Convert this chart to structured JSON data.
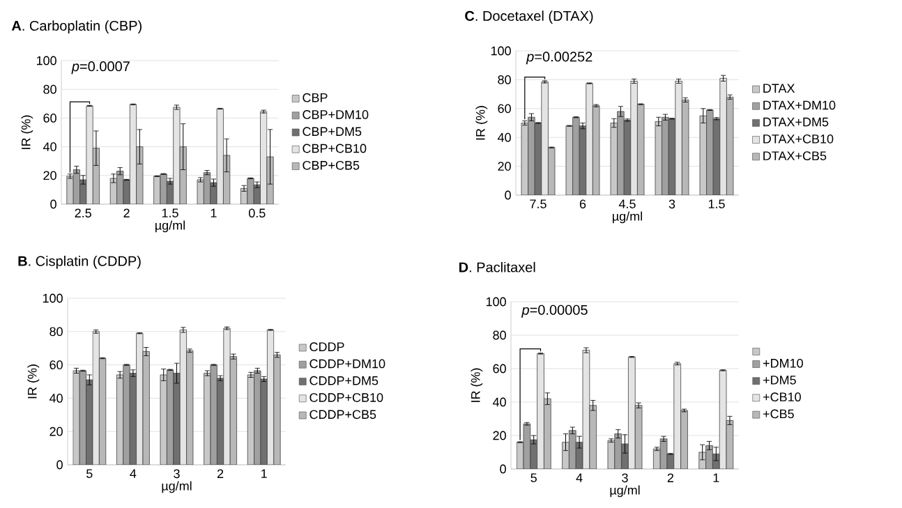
{
  "chart_data": [
    {
      "type": "bar",
      "title": "**A**. Carboplatin (CBP)",
      "xlabel": "µg/ml",
      "ylabel": "IR (%)",
      "categories": [
        "2.5",
        "2",
        "1.5",
        "1",
        "0.5"
      ],
      "ylim": [
        0,
        100
      ],
      "yticks": [
        0,
        20,
        40,
        60,
        80,
        100
      ],
      "grid": "y",
      "legend": "right",
      "annotations": [
        {
          "text": "*p*=0.0007",
          "x": "2.5",
          "y": 68.5
        }
      ],
      "series": [
        {
          "name": "CBP",
          "color": "#c8c8c8",
          "values": [
            19.5,
            18,
            19.5,
            17,
            11
          ],
          "errors": [
            1.5,
            3,
            0.3,
            1.5,
            2
          ]
        },
        {
          "name": "CBP+DM10",
          "color": "#a0a0a0",
          "values": [
            24,
            23,
            21,
            22,
            18
          ],
          "errors": [
            2.5,
            2.5,
            0.3,
            1.5,
            0.3
          ]
        },
        {
          "name": "CBP+DM5",
          "color": "#707070",
          "values": [
            17,
            17,
            16,
            15,
            13.5
          ],
          "errors": [
            3,
            0.3,
            2,
            2.5,
            2
          ]
        },
        {
          "name": "CBP+CB10",
          "color": "#e4e4e4",
          "values": [
            68.5,
            69.5,
            67.5,
            66.5,
            64.5
          ],
          "errors": [
            0.3,
            0.3,
            1.5,
            0.3,
            1
          ]
        },
        {
          "name": "CBP+CB5",
          "color": "#b8b8b8",
          "values": [
            39,
            40,
            40,
            34,
            33
          ],
          "errors": [
            12,
            12,
            16,
            11.5,
            19
          ]
        }
      ]
    },
    {
      "type": "bar",
      "title": "**C**. Docetaxel (DTAX)",
      "xlabel": "µg/ml",
      "ylabel": "IR (%)",
      "categories": [
        "7.5",
        "6",
        "4.5",
        "3",
        "1.5"
      ],
      "ylim": [
        0,
        100
      ],
      "yticks": [
        0,
        20,
        40,
        60,
        80,
        100
      ],
      "grid": "y",
      "legend": "right",
      "annotations": [
        {
          "text": "*p*=0.00252",
          "x": "7.5",
          "y": 78.5
        }
      ],
      "series": [
        {
          "name": "DTAX",
          "color": "#c8c8c8",
          "values": [
            50,
            48,
            50,
            51,
            55
          ],
          "errors": [
            1.5,
            0.3,
            3,
            3,
            5
          ]
        },
        {
          "name": "DTAX+DM10",
          "color": "#a0a0a0",
          "values": [
            54,
            54,
            58,
            54,
            59
          ],
          "errors": [
            2.5,
            0.3,
            3.5,
            2,
            0.3
          ]
        },
        {
          "name": "DTAX+DM5",
          "color": "#707070",
          "values": [
            50,
            48,
            52,
            53,
            53
          ],
          "errors": [
            0.3,
            2,
            0.8,
            0.3,
            0.8
          ]
        },
        {
          "name": "DTAX+CB10",
          "color": "#e4e4e4",
          "values": [
            78.5,
            77.5,
            79,
            79,
            81
          ],
          "errors": [
            0.8,
            0.3,
            1.5,
            1.5,
            2
          ]
        },
        {
          "name": "DTAX+CB5",
          "color": "#b8b8b8",
          "values": [
            33,
            62,
            63,
            66,
            68
          ],
          "errors": [
            0.3,
            0.8,
            0.3,
            1.5,
            1.5
          ]
        }
      ]
    },
    {
      "type": "bar",
      "title": "**B**. Cisplatin (CDDP)",
      "xlabel": "µg/ml",
      "ylabel": "IR (%)",
      "categories": [
        "5",
        "4",
        "3",
        "2",
        "1"
      ],
      "ylim": [
        0,
        100
      ],
      "yticks": [
        0,
        20,
        40,
        60,
        80,
        100
      ],
      "grid": "y",
      "legend": "right",
      "series": [
        {
          "name": "CDDP",
          "color": "#c8c8c8",
          "values": [
            56.5,
            54,
            54,
            55,
            54
          ],
          "errors": [
            1.5,
            2,
            3.5,
            1.5,
            1.5
          ]
        },
        {
          "name": "CDDP+DM10",
          "color": "#a0a0a0",
          "values": [
            56.5,
            60,
            57,
            60,
            56.5
          ],
          "errors": [
            0.3,
            0.3,
            0.3,
            0.3,
            1.5
          ]
        },
        {
          "name": "CDDP+DM5",
          "color": "#707070",
          "values": [
            51,
            55,
            55,
            52,
            51.5
          ],
          "errors": [
            3,
            2,
            6,
            1.5,
            1.5
          ]
        },
        {
          "name": "CDDP+CB10",
          "color": "#e4e4e4",
          "values": [
            80,
            79,
            81,
            82,
            81
          ],
          "errors": [
            1,
            0.3,
            1.5,
            0.8,
            0.3
          ]
        },
        {
          "name": "CDDP+CB5",
          "color": "#b8b8b8",
          "values": [
            64,
            68,
            68.5,
            65,
            66
          ],
          "errors": [
            0.3,
            2.5,
            1,
            1.5,
            1.5
          ]
        }
      ]
    },
    {
      "type": "bar",
      "title": "**D**. Paclitaxel",
      "xlabel": "µg/ml",
      "ylabel": "IR (%)",
      "categories": [
        "5",
        "4",
        "3",
        "2",
        "1"
      ],
      "ylim": [
        0,
        100
      ],
      "yticks": [
        0,
        20,
        40,
        60,
        80,
        100
      ],
      "grid": "y",
      "legend": "right",
      "annotations": [
        {
          "text": "*p*=0.00005",
          "x": "5",
          "y": 69
        }
      ],
      "series": [
        {
          "color": "#c8c8c8",
          "values": [
            16,
            16,
            17,
            12,
            10
          ],
          "errors": [
            0.3,
            5,
            1,
            1,
            4.5
          ]
        },
        {
          "name": "+DM10",
          "color": "#a0a0a0",
          "values": [
            27,
            23,
            21,
            18,
            14
          ],
          "errors": [
            0.8,
            2,
            2.5,
            1.5,
            2.5
          ]
        },
        {
          "name": "+DM5",
          "color": "#707070",
          "values": [
            17.5,
            16,
            15,
            9,
            9
          ],
          "errors": [
            2.5,
            3.5,
            5.5,
            0.3,
            4
          ]
        },
        {
          "name": "+CB10",
          "color": "#e4e4e4",
          "values": [
            69,
            71,
            67,
            63,
            59
          ],
          "errors": [
            0.3,
            1.5,
            0.3,
            0.8,
            0.3
          ]
        },
        {
          "name": "+CB5",
          "color": "#b8b8b8",
          "values": [
            42,
            38,
            38,
            35,
            29
          ],
          "errors": [
            3.5,
            3,
            1.5,
            0.8,
            2.5
          ]
        }
      ]
    }
  ]
}
